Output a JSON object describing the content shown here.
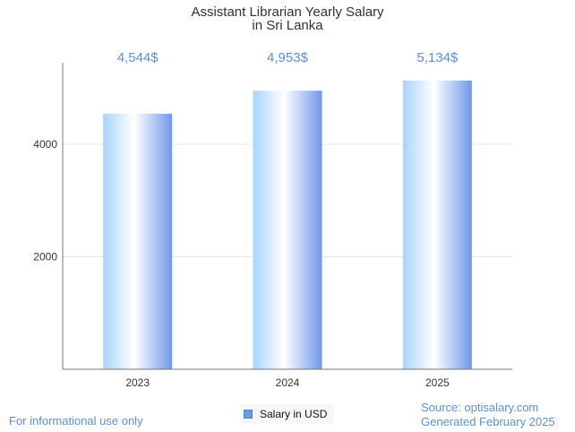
{
  "chart_data": {
    "type": "bar",
    "title_lines": [
      "Assistant Librarian Yearly Salary",
      "in Sri Lanka"
    ],
    "categories": [
      "2023",
      "2024",
      "2025"
    ],
    "series": [
      {
        "name": "Salary in USD",
        "values": [
          4544,
          4953,
          5134
        ],
        "value_labels": [
          "4,544$",
          "4,953$",
          "5,134$"
        ]
      }
    ],
    "y_ticks": [
      "2000",
      "4000"
    ],
    "ylim": [
      0,
      5450
    ],
    "grid": true,
    "legend_position": "bottom"
  },
  "footer": {
    "disclaimer": "For informational use only",
    "source": "Source: optisalary.com",
    "generated": "Generated February 2025"
  },
  "colors": {
    "accent_text": "#5b8fdc",
    "bar_edge": "#6f98ea",
    "bar_center": "#ffffff",
    "bar_left": "#a9d4ff",
    "legend_swatch": "#6f9fdb"
  }
}
